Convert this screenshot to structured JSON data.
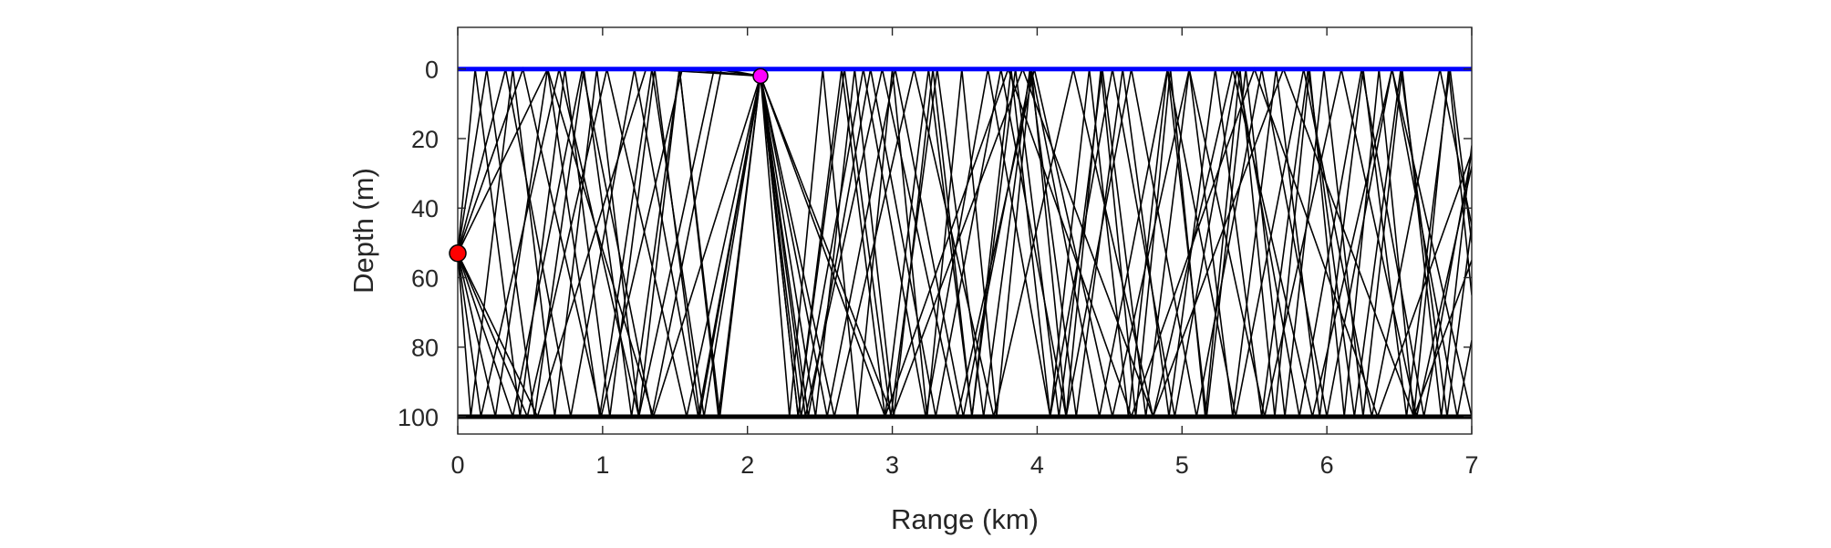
{
  "chart_data": {
    "type": "line",
    "title": "",
    "xlabel": "Range (km)",
    "ylabel": "Depth (m)",
    "xlim": [
      0,
      7
    ],
    "ylim": [
      -12,
      105
    ],
    "y_reversed": true,
    "grid": false,
    "xticks": [
      0,
      1,
      2,
      3,
      4,
      5,
      6,
      7
    ],
    "yticks": [
      0,
      20,
      40,
      60,
      80,
      100
    ],
    "surface": {
      "depth": 0,
      "color": "#0000ff"
    },
    "bottom": {
      "depth": 100,
      "color": "#000000"
    },
    "source": {
      "range_km": 0,
      "depth_m": 53,
      "color": "#ff0000"
    },
    "receiver": {
      "range_km": 2.09,
      "depth_m": 2,
      "color": "#ff00ff"
    },
    "ray_color": "#000000",
    "series": [
      {
        "x": [
          0,
          0.16,
          0.7,
          1.25,
          1.77,
          2.09,
          2.4,
          2.93,
          3.45,
          3.98,
          4.52,
          5.05,
          5.57,
          6.1,
          6.62,
          7.0
        ],
        "y": [
          53,
          100,
          0,
          100,
          0,
          2,
          100,
          0,
          100,
          0,
          100,
          0,
          100,
          0,
          100,
          28
        ]
      },
      {
        "x": [
          0,
          0.33,
          0.78,
          1.22,
          1.66,
          2.09,
          2.42,
          2.85,
          3.3,
          3.75,
          4.2,
          4.65,
          5.1,
          5.55,
          6.0,
          6.45,
          6.9,
          7.0
        ],
        "y": [
          53,
          0,
          100,
          0,
          100,
          2,
          100,
          0,
          100,
          0,
          100,
          0,
          100,
          0,
          100,
          0,
          100,
          78
        ]
      },
      {
        "x": [
          0,
          0.45,
          0.99,
          1.55,
          2.09,
          2.6,
          3.15,
          3.7,
          4.25,
          4.8,
          5.35,
          5.9,
          6.45,
          7.0
        ],
        "y": [
          53,
          0,
          100,
          0,
          2,
          100,
          0,
          100,
          0,
          100,
          0,
          100,
          0,
          100
        ]
      },
      {
        "x": [
          0,
          0.09,
          0.38,
          0.67,
          0.96,
          1.25,
          1.53,
          1.81,
          2.09,
          2.29,
          2.52,
          2.76,
          3.0,
          3.24,
          3.48,
          3.72,
          3.96,
          4.2,
          4.44,
          4.68,
          4.92,
          5.16,
          5.4,
          5.64,
          5.88,
          6.12,
          6.36,
          6.6,
          6.84,
          7.0
        ],
        "y": [
          53,
          100,
          0,
          100,
          0,
          100,
          0,
          100,
          2,
          100,
          0,
          100,
          0,
          100,
          0,
          100,
          0,
          100,
          0,
          100,
          0,
          100,
          0,
          100,
          0,
          100,
          0,
          100,
          0,
          65
        ]
      },
      {
        "x": [
          0,
          0.2,
          0.53,
          0.87,
          1.2,
          1.53,
          1.8,
          2.09,
          2.35,
          2.67,
          2.99,
          3.31,
          3.63,
          3.95,
          4.27,
          4.59,
          4.91,
          5.23,
          5.55,
          5.87,
          6.19,
          6.51,
          6.83,
          7.0
        ],
        "y": [
          53,
          0,
          100,
          0,
          100,
          0,
          100,
          2,
          100,
          0,
          100,
          0,
          100,
          0,
          100,
          0,
          100,
          0,
          100,
          0,
          100,
          0,
          100,
          45
        ]
      },
      {
        "x": [
          0,
          0.48,
          1.03,
          1.58,
          2.09,
          2.55,
          3.02,
          3.49,
          3.96,
          4.43,
          4.9,
          5.37,
          5.84,
          6.31,
          6.78,
          7.0
        ],
        "y": [
          53,
          100,
          0,
          100,
          2,
          100,
          0,
          100,
          0,
          100,
          0,
          100,
          0,
          100,
          0,
          45
        ]
      },
      {
        "x": [
          0,
          0.12,
          0.43,
          0.74,
          1.05,
          1.36,
          1.67,
          2.09,
          2.47,
          2.74,
          3.01,
          3.28,
          3.55,
          3.82,
          4.09,
          4.36,
          4.63,
          4.9,
          5.17,
          5.44,
          5.71,
          5.98,
          6.25,
          6.52,
          6.79,
          7.0
        ],
        "y": [
          53,
          0,
          100,
          0,
          100,
          0,
          100,
          2,
          100,
          0,
          100,
          0,
          100,
          0,
          100,
          0,
          100,
          0,
          100,
          0,
          100,
          0,
          100,
          0,
          100,
          22
        ]
      },
      {
        "x": [
          0,
          0.38,
          0.86,
          1.34,
          1.82,
          2.09,
          2.37,
          2.8,
          3.23,
          3.66,
          4.09,
          4.52,
          4.95,
          5.38,
          5.81,
          6.24,
          6.67,
          7.0
        ],
        "y": [
          53,
          100,
          0,
          100,
          0,
          2,
          100,
          0,
          100,
          0,
          100,
          0,
          100,
          0,
          100,
          0,
          100,
          24
        ]
      },
      {
        "x": [
          0,
          0.26,
          0.62,
          0.98,
          1.34,
          1.7,
          2.09,
          2.35,
          2.65,
          2.95,
          3.25,
          3.55,
          3.85,
          4.15,
          4.45,
          4.75,
          5.05,
          5.35,
          5.65,
          5.95,
          6.25,
          6.55,
          6.85,
          7.0
        ],
        "y": [
          53,
          100,
          0,
          100,
          0,
          100,
          2,
          100,
          0,
          100,
          0,
          100,
          0,
          100,
          0,
          100,
          0,
          100,
          0,
          100,
          0,
          100,
          0,
          50
        ]
      },
      {
        "x": [
          0,
          0.62,
          1.35,
          2.09,
          2.95,
          3.8,
          4.65,
          5.5,
          6.35,
          7.0
        ],
        "y": [
          53,
          0,
          100,
          2,
          100,
          0,
          100,
          0,
          100,
          24
        ]
      },
      {
        "x": [
          0,
          0.55,
          1.3,
          2.09,
          3.0,
          3.9,
          4.8,
          5.7,
          6.6,
          7.0
        ],
        "y": [
          53,
          100,
          0,
          2,
          100,
          0,
          100,
          0,
          100,
          55
        ]
      }
    ]
  }
}
